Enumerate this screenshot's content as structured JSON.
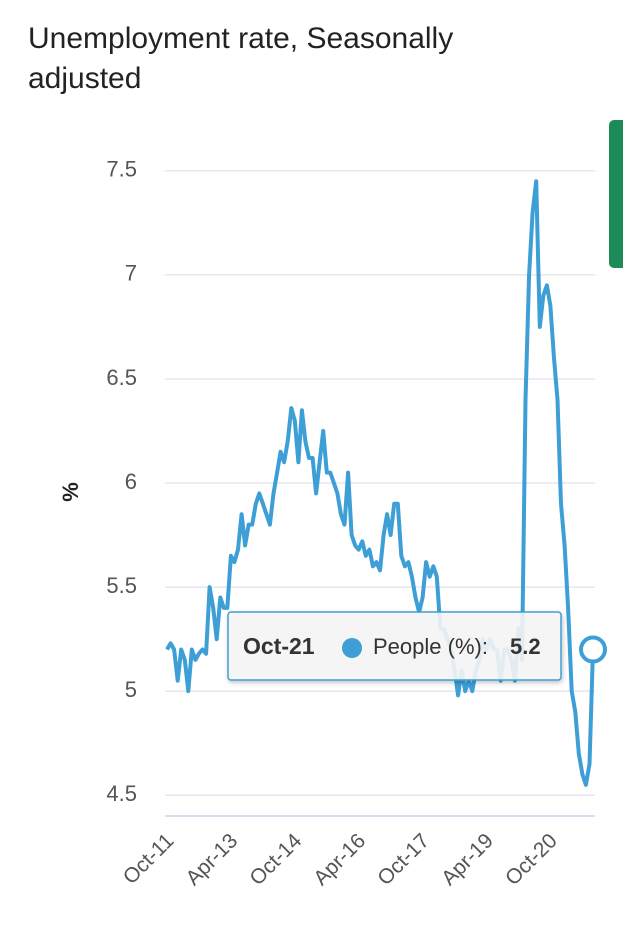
{
  "chart_data": {
    "type": "line",
    "title": "Unemployment rate, Seasonally adjusted",
    "y_label": "%",
    "categories": [
      "Oct-11",
      null,
      null,
      null,
      null,
      null,
      null,
      null,
      null,
      null,
      null,
      null,
      null,
      null,
      null,
      null,
      null,
      null,
      "Apr-13",
      null,
      null,
      null,
      null,
      null,
      null,
      null,
      null,
      null,
      null,
      null,
      null,
      null,
      null,
      null,
      null,
      null,
      "Oct-14",
      null,
      null,
      null,
      null,
      null,
      null,
      null,
      null,
      null,
      null,
      null,
      null,
      null,
      null,
      null,
      null,
      null,
      "Apr-16",
      null,
      null,
      null,
      null,
      null,
      null,
      null,
      null,
      null,
      null,
      null,
      null,
      null,
      null,
      null,
      null,
      null,
      "Oct-17",
      null,
      null,
      null,
      null,
      null,
      null,
      null,
      null,
      null,
      null,
      null,
      null,
      null,
      null,
      null,
      null,
      null,
      "Apr-19",
      null,
      null,
      null,
      null,
      null,
      null,
      null,
      null,
      null,
      null,
      null,
      null,
      null,
      null,
      null,
      null,
      null,
      "Oct-20",
      null,
      null,
      null,
      null,
      null,
      null,
      null,
      null,
      null,
      null,
      null,
      "Oct-21"
    ],
    "series": [
      {
        "color": "#3d9fd6",
        "values": [
          5.2,
          5.23,
          5.2,
          5.05,
          5.2,
          5.15,
          5.0,
          5.2,
          5.15,
          5.18,
          5.2,
          5.18,
          5.5,
          5.4,
          5.25,
          5.45,
          5.4,
          5.4,
          5.65,
          5.62,
          5.68,
          5.85,
          5.7,
          5.8,
          5.8,
          5.9,
          5.95,
          5.9,
          5.85,
          5.8,
          5.95,
          6.05,
          6.15,
          6.1,
          6.2,
          6.36,
          6.3,
          6.1,
          6.35,
          6.2,
          6.12,
          6.12,
          5.95,
          6.1,
          6.25,
          6.05,
          6.05,
          6.0,
          5.95,
          5.85,
          5.8,
          6.05,
          5.75,
          5.7,
          5.68,
          5.72,
          5.65,
          5.68,
          5.6,
          5.62,
          5.58,
          5.75,
          5.85,
          5.75,
          5.9,
          5.9,
          5.65,
          5.6,
          5.62,
          5.55,
          5.45,
          5.38,
          5.45,
          5.62,
          5.55,
          5.6,
          5.55,
          5.3,
          5.3,
          5.25,
          5.2,
          5.1,
          4.98,
          5.1,
          5.0,
          5.05,
          5.0,
          5.1,
          5.15,
          5.25,
          5.2,
          5.25,
          5.2,
          5.2,
          5.05,
          5.2,
          5.2,
          5.15,
          5.05,
          5.3,
          5.15,
          6.4,
          7.0,
          7.3,
          7.45,
          6.75,
          6.9,
          6.95,
          6.85,
          6.6,
          6.4,
          5.9,
          5.7,
          5.4,
          5.0,
          4.9,
          4.7,
          4.6,
          4.55,
          4.65,
          5.2
        ]
      }
    ],
    "ylim": [
      4.4,
      7.6
    ],
    "yticks": [
      4.5,
      5,
      5.5,
      6,
      6.5,
      7,
      7.5
    ],
    "grid": true,
    "tooltip_label": "People (%):"
  }
}
